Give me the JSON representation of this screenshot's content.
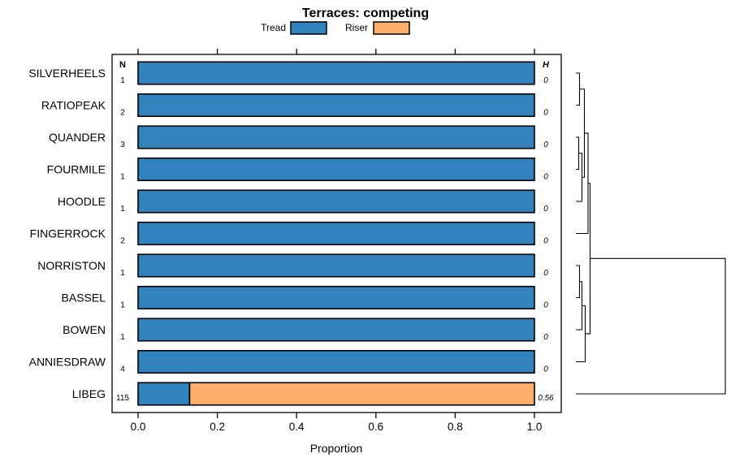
{
  "title": "Terraces: competing",
  "legend": {
    "items": [
      {
        "label": "Tread",
        "color": "#3182bd"
      },
      {
        "label": "Riser",
        "color": "#fdae6b"
      }
    ]
  },
  "columns": {
    "left_header": "N",
    "right_header": "H"
  },
  "axis": {
    "xlabel": "Proportion",
    "ticks": [
      {
        "value": 0.0,
        "label": "0.0"
      },
      {
        "value": 0.2,
        "label": "0.2"
      },
      {
        "value": 0.4,
        "label": "0.4"
      },
      {
        "value": 0.6,
        "label": "0.6"
      },
      {
        "value": 0.8,
        "label": "0.8"
      },
      {
        "value": 1.0,
        "label": "1.0"
      }
    ]
  },
  "chart_data": {
    "type": "bar",
    "orientation": "horizontal",
    "stacked": true,
    "xlim": [
      0,
      1
    ],
    "categories": [
      "SILVERHEELS",
      "RATIOPEAK",
      "QUANDER",
      "FOURMILE",
      "HOODLE",
      "FINGERROCK",
      "NORRISTON",
      "BASSEL",
      "BOWEN",
      "ANNIESDRAW",
      "LIBEG"
    ],
    "series": [
      {
        "name": "Tread",
        "color": "#3182bd",
        "values": [
          1.0,
          1.0,
          1.0,
          1.0,
          1.0,
          1.0,
          1.0,
          1.0,
          1.0,
          1.0,
          0.13
        ]
      },
      {
        "name": "Riser",
        "color": "#fdae6b",
        "values": [
          0,
          0,
          0,
          0,
          0,
          0,
          0,
          0,
          0,
          0,
          0.87
        ]
      }
    ],
    "n_values": [
      "1",
      "2",
      "3",
      "1",
      "1",
      "2",
      "1",
      "1",
      "1",
      "4",
      "115"
    ],
    "h_values": [
      "0",
      "0",
      "0",
      "0",
      "0",
      "0",
      "0",
      "0",
      "0",
      "0",
      "0.56"
    ],
    "bar_border_color": "#000000",
    "dendrogram": {
      "leaf_x": 709,
      "merges": [
        {
          "x": 713.5,
          "children": [
            "L0",
            "L1"
          ]
        },
        {
          "x": 712.5,
          "children": [
            "L2",
            "L3"
          ]
        },
        {
          "x": 716.5,
          "children": [
            "M1",
            "L4"
          ]
        },
        {
          "x": 719.5,
          "children": [
            "M0",
            "M2"
          ]
        },
        {
          "x": 724.0,
          "children": [
            "M3",
            "L5"
          ]
        },
        {
          "x": 713.5,
          "children": [
            "L6",
            "L7"
          ]
        },
        {
          "x": 716.5,
          "children": [
            "M5",
            "L8"
          ]
        },
        {
          "x": 720.5,
          "children": [
            "M6",
            "L9"
          ]
        },
        {
          "x": 726.5,
          "children": [
            "M4",
            "M7"
          ]
        },
        {
          "x": 893.0,
          "children": [
            "M8",
            "L10"
          ]
        }
      ]
    }
  }
}
